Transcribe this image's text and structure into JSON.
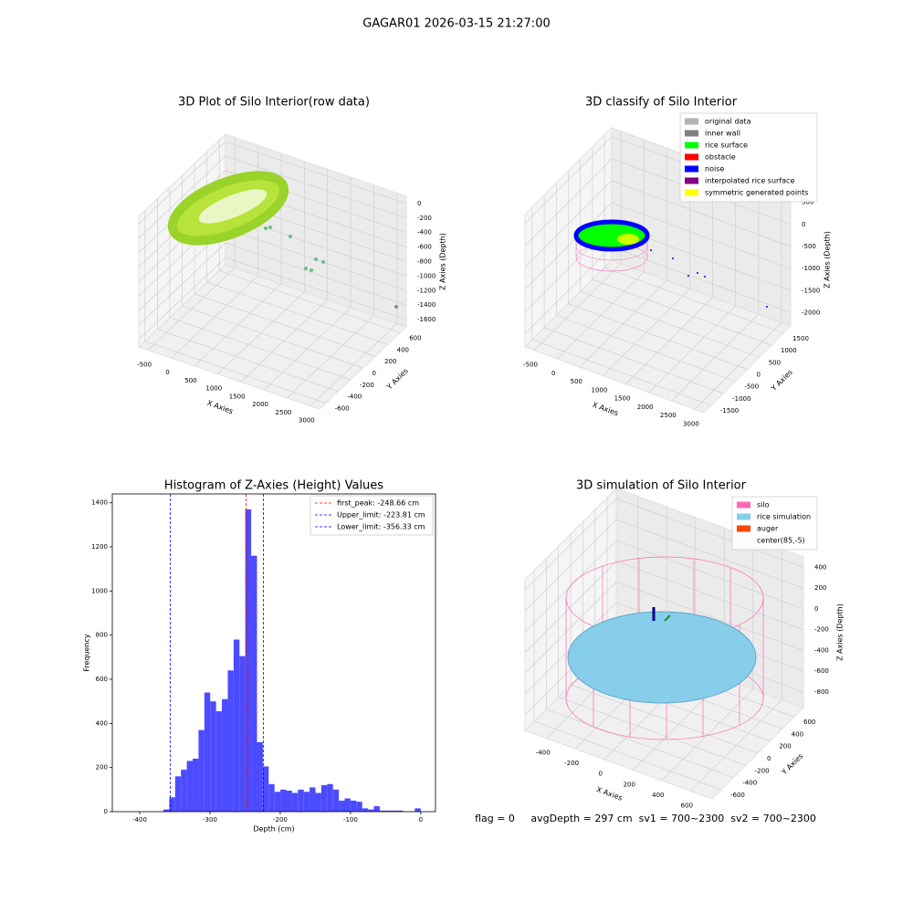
{
  "figure": {
    "title": "GAGAR01 2026-03-15 21:27:00",
    "footer": "flag = 0     avgDepth = 297 cm  sv1 = 700~2300  sv2 = 700~2300"
  },
  "chart_data": [
    {
      "type": "scatter3d",
      "title": "3D Plot of Silo Interior(row data)",
      "xlabel": "X Axies",
      "ylabel": "Y Axies",
      "zlabel": "Z Axies (Depth)",
      "xlim": [
        -700,
        3200
      ],
      "ylim": [
        -700,
        700
      ],
      "zlim": [
        -1700,
        100
      ],
      "xticks": [
        -500,
        0,
        500,
        1000,
        1500,
        2000,
        2500,
        3000
      ],
      "yticks": [
        -600,
        -400,
        -200,
        0,
        200,
        400,
        600
      ],
      "zticks": [
        0,
        -200,
        -400,
        -600,
        -800,
        -1000,
        -1200,
        -1400,
        -1600
      ]
    },
    {
      "type": "scatter3d",
      "title": "3D classify of Silo Interior",
      "xlabel": "X Axies",
      "ylabel": "Y Axies",
      "zlabel": "Z Axies (Depth)",
      "xlim": [
        -700,
        3200
      ],
      "ylim": [
        -1800,
        1800
      ],
      "zlim": [
        -2300,
        700
      ],
      "xticks": [
        -500,
        0,
        500,
        1000,
        1500,
        2000,
        2500,
        3000
      ],
      "yticks": [
        -1500,
        -1000,
        -500,
        0,
        500,
        1000,
        1500
      ],
      "zticks": [
        500,
        0,
        -500,
        -1000,
        -1500,
        -2000
      ],
      "series": [
        {
          "name": "original data",
          "color": "#b3b3b3"
        },
        {
          "name": "inner wall",
          "color": "#808080"
        },
        {
          "name": "rice surface",
          "color": "#00ff00"
        },
        {
          "name": "obstacle",
          "color": "#ff0000"
        },
        {
          "name": "noise",
          "color": "#0000ff"
        },
        {
          "name": "interpolated rice surface",
          "color": "#800080"
        },
        {
          "name": "symmetric generated points",
          "color": "#ffff00"
        }
      ]
    },
    {
      "type": "histogram",
      "title": "Histogram of Z-Axies (Height) Values",
      "xlabel": "Depth (cm)",
      "ylabel": "Frequency",
      "color": "#4b4bff",
      "bins": [
        -366.2,
        -357.88,
        -349.56,
        -341.24,
        -332.92,
        -324.6,
        -316.28,
        -307.96,
        -299.64,
        -291.32,
        -283,
        -274.68,
        -266.36,
        -258.04,
        -249.72,
        -241.4,
        -233.08,
        -224.76,
        -216.44,
        -208.12,
        -199.8,
        -191.48,
        -183.16,
        -174.84,
        -166.52,
        -158.2,
        -149.88,
        -141.56,
        -133.24,
        -124.92,
        -116.6,
        -108.28,
        -99.96,
        -91.64,
        -83.32,
        -75,
        -66.68,
        -58.36,
        -50.04,
        -41.72,
        -33.4,
        -25.08,
        -16.76,
        -8.44,
        -0.12
      ],
      "counts": [
        10,
        65,
        160,
        190,
        230,
        240,
        370,
        540,
        500,
        455,
        510,
        640,
        780,
        705,
        1370,
        1160,
        315,
        205,
        125,
        90,
        100,
        95,
        85,
        100,
        90,
        110,
        85,
        120,
        125,
        100,
        50,
        60,
        50,
        45,
        15,
        10,
        25,
        5,
        5,
        5,
        5,
        0,
        0,
        15
      ],
      "xlim": [
        -439,
        21
      ],
      "ylim": [
        0,
        1440
      ],
      "xticks": [
        -400,
        -300,
        -200,
        -100,
        0
      ],
      "yticks": [
        0,
        200,
        400,
        600,
        800,
        1000,
        1200,
        1400
      ],
      "lines": [
        {
          "label": "first_peak: -248.66 cm",
          "value": -248.66,
          "color": "#ff0000"
        },
        {
          "label": "Upper_limit: -223.81 cm",
          "value": -223.81,
          "color": "#0000ff"
        },
        {
          "label": "Lower_limit: -356.33 cm",
          "value": -356.33,
          "color": "#0000ff"
        }
      ]
    },
    {
      "type": "surface3d",
      "title": "3D simulation of Silo Interior",
      "xlabel": "X Axies",
      "ylabel": "Y Axies",
      "zlabel": "Z Axies (Depth)",
      "xlim": [
        -550,
        750
      ],
      "ylim": [
        -750,
        750
      ],
      "zlim": [
        -950,
        500
      ],
      "xticks": [
        -400,
        -200,
        0,
        200,
        400,
        600
      ],
      "yticks": [
        -600,
        -400,
        -200,
        0,
        200,
        400,
        600
      ],
      "zticks": [
        400,
        200,
        0,
        -200,
        -400,
        -600,
        -800
      ],
      "series": [
        {
          "name": "silo",
          "color": "#ff69b4"
        },
        {
          "name": "rice simulation",
          "color": "#87ceeb"
        },
        {
          "name": "auger",
          "color": "#ff4500"
        },
        {
          "name": "center(85,-5)",
          "color": "#ffffff"
        }
      ]
    }
  ]
}
